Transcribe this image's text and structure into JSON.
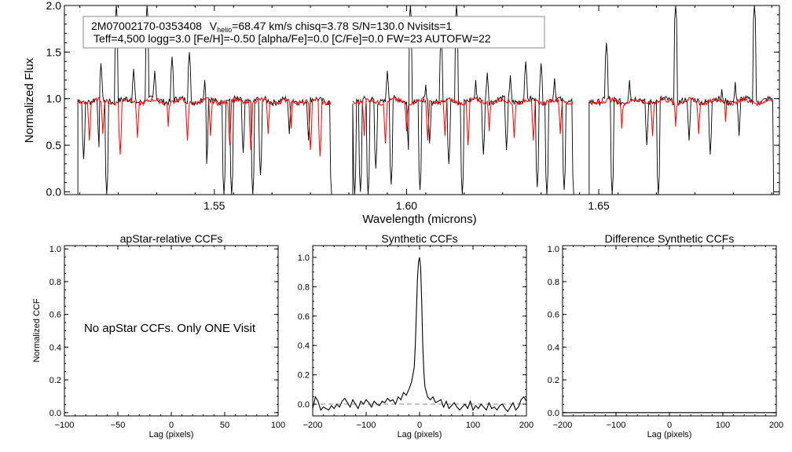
{
  "chart_data": [
    {
      "type": "line",
      "panel": "spectrum",
      "info_box": {
        "line1_star": "2M07002170-0353408",
        "line1_v": "V",
        "line1_v_sub": "helio",
        "line1_rest": "=68.47 km/s  chisq=3.78  S/N=130.0  Nvisits=1",
        "line2": "Teff=4,500 logg=3.0 [Fe/H]=-0.50 [alpha/Fe]=0.0 [C/Fe]=0.0 FW=23 AUTOFW=22"
      },
      "xlabel": "Wavelength (microns)",
      "ylabel": "Normalized Flux",
      "xlim": [
        1.511,
        1.697
      ],
      "ylim": [
        -0.03,
        2.0
      ],
      "xticks": [
        1.55,
        1.6,
        1.65
      ],
      "xtick_labels": [
        "1.55",
        "1.60",
        "1.65"
      ],
      "yticks": [
        0.0,
        0.5,
        1.0,
        1.5,
        2.0
      ],
      "ytick_labels": [
        "0.0",
        "0.5",
        "1.0",
        "1.5",
        "2.0"
      ],
      "chips": [
        [
          1.5145,
          1.5805
        ],
        [
          1.586,
          1.6435
        ],
        [
          1.6475,
          1.6955
        ]
      ],
      "series": [
        {
          "color": "#000000",
          "emission": [
            [
              1.5205,
              1.38
            ],
            [
              1.5245,
              2.0
            ],
            [
              1.529,
              1.32
            ],
            [
              1.5325,
              2.0
            ],
            [
              1.5345,
              1.3
            ],
            [
              1.539,
              1.45
            ],
            [
              1.5435,
              1.5
            ],
            [
              1.5475,
              1.2
            ],
            [
              1.595,
              1.3
            ],
            [
              1.601,
              2.0
            ],
            [
              1.605,
              1.15
            ],
            [
              1.609,
              1.65
            ],
            [
              1.613,
              2.0
            ],
            [
              1.618,
              1.2
            ],
            [
              1.621,
              1.28
            ],
            [
              1.627,
              1.25
            ],
            [
              1.631,
              1.4
            ],
            [
              1.635,
              1.38
            ],
            [
              1.6385,
              1.22
            ],
            [
              1.652,
              1.6
            ],
            [
              1.658,
              1.2
            ],
            [
              1.67,
              2.0
            ],
            [
              1.682,
              1.1
            ],
            [
              1.6855,
              1.18
            ],
            [
              1.6905,
              2.0
            ]
          ],
          "absorption": [
            [
              1.516,
              0.35
            ],
            [
              1.52,
              0.48
            ],
            [
              1.522,
              -0.03
            ],
            [
              1.548,
              0.3
            ],
            [
              1.5525,
              -0.03
            ],
            [
              1.5545,
              -0.03
            ],
            [
              1.5575,
              0.42
            ],
            [
              1.56,
              -0.03
            ],
            [
              1.562,
              0.18
            ],
            [
              1.5695,
              0.62
            ],
            [
              1.5745,
              0.55
            ],
            [
              1.5805,
              -0.03
            ],
            [
              1.5865,
              -0.03
            ],
            [
              1.588,
              0.0
            ],
            [
              1.59,
              -0.03
            ],
            [
              1.592,
              0.25
            ],
            [
              1.596,
              0.08
            ],
            [
              1.6005,
              0.45
            ],
            [
              1.6035,
              0.02
            ],
            [
              1.606,
              0.52
            ],
            [
              1.611,
              0.3
            ],
            [
              1.6145,
              -0.03
            ],
            [
              1.62,
              0.4
            ],
            [
              1.626,
              0.45
            ],
            [
              1.634,
              0.05
            ],
            [
              1.6365,
              -0.03
            ],
            [
              1.6385,
              0.0
            ],
            [
              1.641,
              0.02
            ],
            [
              1.6435,
              -0.03
            ],
            [
              1.652,
              0.35
            ],
            [
              1.6535,
              -0.03
            ],
            [
              1.6625,
              0.5
            ],
            [
              1.6655,
              -0.03
            ],
            [
              1.6735,
              0.55
            ],
            [
              1.679,
              0.4
            ],
            [
              1.6865,
              0.6
            ]
          ]
        },
        {
          "color": "#ff0000",
          "absorption": [
            [
              1.5175,
              0.55
            ],
            [
              1.521,
              0.62
            ],
            [
              1.5255,
              0.4
            ],
            [
              1.53,
              0.58
            ],
            [
              1.538,
              0.7
            ],
            [
              1.543,
              0.55
            ],
            [
              1.549,
              0.6
            ],
            [
              1.554,
              0.5
            ],
            [
              1.5595,
              0.45
            ],
            [
              1.564,
              0.62
            ],
            [
              1.57,
              0.68
            ],
            [
              1.575,
              0.45
            ],
            [
              1.5775,
              0.38
            ],
            [
              1.589,
              0.6
            ],
            [
              1.5945,
              0.52
            ],
            [
              1.6,
              0.65
            ],
            [
              1.6055,
              0.55
            ],
            [
              1.61,
              0.6
            ],
            [
              1.616,
              0.5
            ],
            [
              1.6215,
              0.65
            ],
            [
              1.628,
              0.58
            ],
            [
              1.633,
              0.55
            ],
            [
              1.64,
              0.62
            ],
            [
              1.656,
              0.68
            ],
            [
              1.664,
              0.6
            ],
            [
              1.67,
              0.7
            ],
            [
              1.676,
              0.62
            ],
            [
              1.683,
              0.75
            ]
          ]
        }
      ]
    },
    {
      "type": "line",
      "panel": "apstar-ccf",
      "title": "apStar-relative CCFs",
      "xlabel": "Lag (pixels)",
      "ylabel": "Normalized CCF",
      "xlim": [
        -100,
        100
      ],
      "ylim": [
        -0.02,
        1.02
      ],
      "xticks": [
        -100,
        -50,
        0,
        50,
        100
      ],
      "xtick_labels": [
        "−100",
        "−50",
        "0",
        "50",
        "100"
      ],
      "yticks": [
        0.0,
        0.2,
        0.4,
        0.6,
        0.8,
        1.0
      ],
      "ytick_labels": [
        "0.0",
        "0.2",
        "0.4",
        "0.6",
        "0.8",
        "1.0"
      ],
      "annotation": "No apStar CCFs.  Only ONE Visit",
      "series": []
    },
    {
      "type": "line",
      "panel": "synthetic-ccf",
      "title": "Synthetic CCFs",
      "xlabel": "Lag (pixels)",
      "ylabel": "",
      "xlim": [
        -200,
        200
      ],
      "ylim": [
        -0.08,
        1.08
      ],
      "xticks": [
        -200,
        -100,
        0,
        100,
        200
      ],
      "xtick_labels": [
        "−200",
        "−100",
        "0",
        "100",
        "200"
      ],
      "yticks": [
        0.0,
        0.2,
        0.4,
        0.6,
        0.8,
        1.0
      ],
      "ytick_labels": [
        "0.0",
        "0.2",
        "0.4",
        "0.6",
        "0.8",
        "1.0"
      ],
      "zero_line": 0.0,
      "series": [
        {
          "color": "#000000",
          "x": [
            -200,
            -195,
            -190,
            -185,
            -180,
            -175,
            -170,
            -165,
            -160,
            -155,
            -150,
            -145,
            -140,
            -135,
            -130,
            -125,
            -120,
            -115,
            -110,
            -105,
            -100,
            -95,
            -90,
            -85,
            -80,
            -75,
            -70,
            -65,
            -60,
            -55,
            -50,
            -45,
            -40,
            -35,
            -30,
            -25,
            -20,
            -15,
            -10,
            -8,
            -6,
            -4,
            -2,
            0,
            2,
            4,
            6,
            8,
            10,
            15,
            20,
            25,
            30,
            35,
            40,
            45,
            50,
            55,
            60,
            65,
            70,
            75,
            80,
            85,
            90,
            95,
            100,
            105,
            110,
            115,
            120,
            125,
            130,
            135,
            140,
            145,
            150,
            155,
            160,
            165,
            170,
            175,
            180,
            185,
            190,
            195,
            200
          ],
          "y": [
            -0.03,
            0.05,
            0.02,
            -0.04,
            -0.02,
            -0.03,
            -0.04,
            -0.01,
            -0.03,
            0.0,
            -0.02,
            0.02,
            0.04,
            0.01,
            -0.02,
            0.03,
            0.0,
            -0.03,
            0.02,
            0.0,
            0.03,
            0.01,
            -0.02,
            0.02,
            0.0,
            -0.01,
            0.02,
            0.01,
            0.04,
            0.02,
            0.03,
            0.0,
            0.05,
            0.03,
            0.08,
            0.06,
            0.1,
            0.15,
            0.25,
            0.4,
            0.62,
            0.85,
            0.97,
            1.0,
            0.93,
            0.7,
            0.4,
            0.22,
            0.12,
            0.05,
            0.03,
            0.05,
            0.01,
            0.02,
            0.03,
            -0.02,
            0.02,
            -0.03,
            -0.01,
            0.01,
            -0.02,
            -0.04,
            -0.02,
            0.0,
            -0.03,
            0.02,
            -0.04,
            -0.01,
            -0.03,
            0.0,
            -0.02,
            -0.04,
            0.01,
            -0.03,
            -0.02,
            -0.04,
            -0.01,
            0.0,
            -0.03,
            -0.05,
            -0.02,
            0.01,
            -0.04,
            -0.02,
            0.03,
            0.05,
            0.02
          ]
        }
      ]
    },
    {
      "type": "line",
      "panel": "difference-ccf",
      "title": "Difference Synthetic CCFs",
      "xlabel": "Lag (pixels)",
      "ylabel": "",
      "xlim": [
        -200,
        200
      ],
      "ylim": [
        -0.02,
        1.02
      ],
      "xticks": [
        -200,
        -100,
        0,
        100,
        200
      ],
      "xtick_labels": [
        "−200",
        "−100",
        "0",
        "100",
        "200"
      ],
      "yticks": [
        0.0,
        0.2,
        0.4,
        0.6,
        0.8,
        1.0
      ],
      "ytick_labels": [
        "0.0",
        "0.2",
        "0.4",
        "0.6",
        "0.8",
        "1.0"
      ],
      "series": [
        {
          "color": "#000000",
          "x": [
            -200,
            200
          ],
          "y": [
            0.0,
            0.0
          ]
        }
      ]
    }
  ]
}
